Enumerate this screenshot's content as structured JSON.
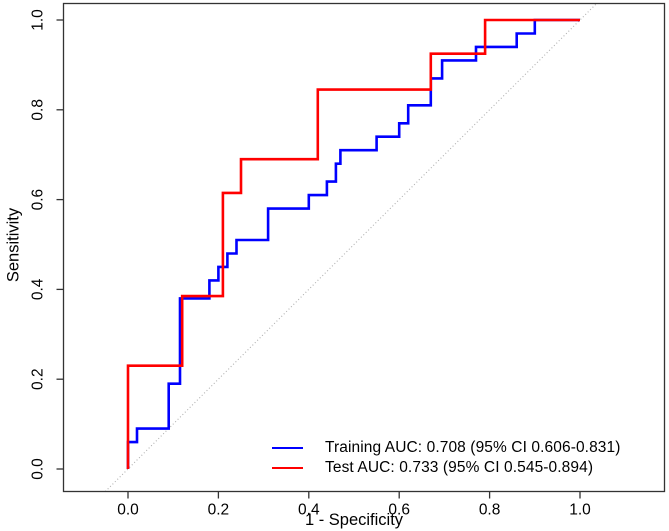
{
  "figure": {
    "background": "#ffffff",
    "axis_color": "#333333",
    "tick_label_color": "#000000"
  },
  "chart_data": {
    "type": "line",
    "subtype": "roc-step-curves",
    "title": "",
    "xlabel": "1 - Specificity",
    "ylabel": "Sensitivity",
    "xlim": [
      0,
      1
    ],
    "ylim": [
      0,
      1
    ],
    "grid": false,
    "legend_position": "bottom-right",
    "xtick_values": [
      0,
      0.2,
      0.4,
      0.6,
      0.8,
      1.0
    ],
    "xtick_labels": [
      "0.0",
      "0.2",
      "0.4",
      "0.6",
      "0.8",
      "1.0"
    ],
    "ytick_values": [
      0,
      0.2,
      0.4,
      0.6,
      0.8,
      1.0
    ],
    "ytick_labels": [
      "0.0",
      "0.2",
      "0.4",
      "0.6",
      "0.8",
      "1.0"
    ],
    "reference_line": {
      "name": "chance-diagonal",
      "from": [
        0,
        0
      ],
      "to": [
        1,
        1
      ],
      "color": "#b0b0b0",
      "style": "dotted"
    },
    "series": [
      {
        "name": "training",
        "legend_label": "Training AUC: 0.708 (95% CI 0.606-0.831)",
        "auc": "0.708",
        "ci_95": "0.606-0.831",
        "color": "#0000ff",
        "points": [
          [
            0,
            0
          ],
          [
            0,
            0.06
          ],
          [
            0.02,
            0.06
          ],
          [
            0.02,
            0.09
          ],
          [
            0.09,
            0.09
          ],
          [
            0.09,
            0.19
          ],
          [
            0.115,
            0.19
          ],
          [
            0.115,
            0.38
          ],
          [
            0.18,
            0.38
          ],
          [
            0.18,
            0.42
          ],
          [
            0.2,
            0.42
          ],
          [
            0.2,
            0.45
          ],
          [
            0.22,
            0.45
          ],
          [
            0.22,
            0.48
          ],
          [
            0.24,
            0.48
          ],
          [
            0.24,
            0.51
          ],
          [
            0.31,
            0.51
          ],
          [
            0.31,
            0.58
          ],
          [
            0.4,
            0.58
          ],
          [
            0.4,
            0.61
          ],
          [
            0.44,
            0.61
          ],
          [
            0.44,
            0.64
          ],
          [
            0.46,
            0.64
          ],
          [
            0.46,
            0.68
          ],
          [
            0.47,
            0.68
          ],
          [
            0.47,
            0.71
          ],
          [
            0.55,
            0.71
          ],
          [
            0.55,
            0.74
          ],
          [
            0.6,
            0.74
          ],
          [
            0.6,
            0.77
          ],
          [
            0.62,
            0.77
          ],
          [
            0.62,
            0.81
          ],
          [
            0.67,
            0.81
          ],
          [
            0.67,
            0.87
          ],
          [
            0.695,
            0.87
          ],
          [
            0.695,
            0.91
          ],
          [
            0.77,
            0.91
          ],
          [
            0.77,
            0.94
          ],
          [
            0.86,
            0.94
          ],
          [
            0.86,
            0.97
          ],
          [
            0.9,
            0.97
          ],
          [
            0.9,
            1.0
          ],
          [
            1.0,
            1.0
          ]
        ]
      },
      {
        "name": "test",
        "legend_label": "Test AUC: 0.733 (95% CI 0.545-0.894)",
        "auc": "0.733",
        "ci_95": "0.545-0.894",
        "color": "#ff0000",
        "points": [
          [
            0,
            0
          ],
          [
            0,
            0.23
          ],
          [
            0.12,
            0.23
          ],
          [
            0.12,
            0.385
          ],
          [
            0.21,
            0.385
          ],
          [
            0.21,
            0.615
          ],
          [
            0.25,
            0.615
          ],
          [
            0.25,
            0.69
          ],
          [
            0.42,
            0.69
          ],
          [
            0.42,
            0.845
          ],
          [
            0.67,
            0.845
          ],
          [
            0.67,
            0.925
          ],
          [
            0.79,
            0.925
          ],
          [
            0.79,
            1.0
          ],
          [
            1.0,
            1.0
          ]
        ]
      }
    ]
  }
}
